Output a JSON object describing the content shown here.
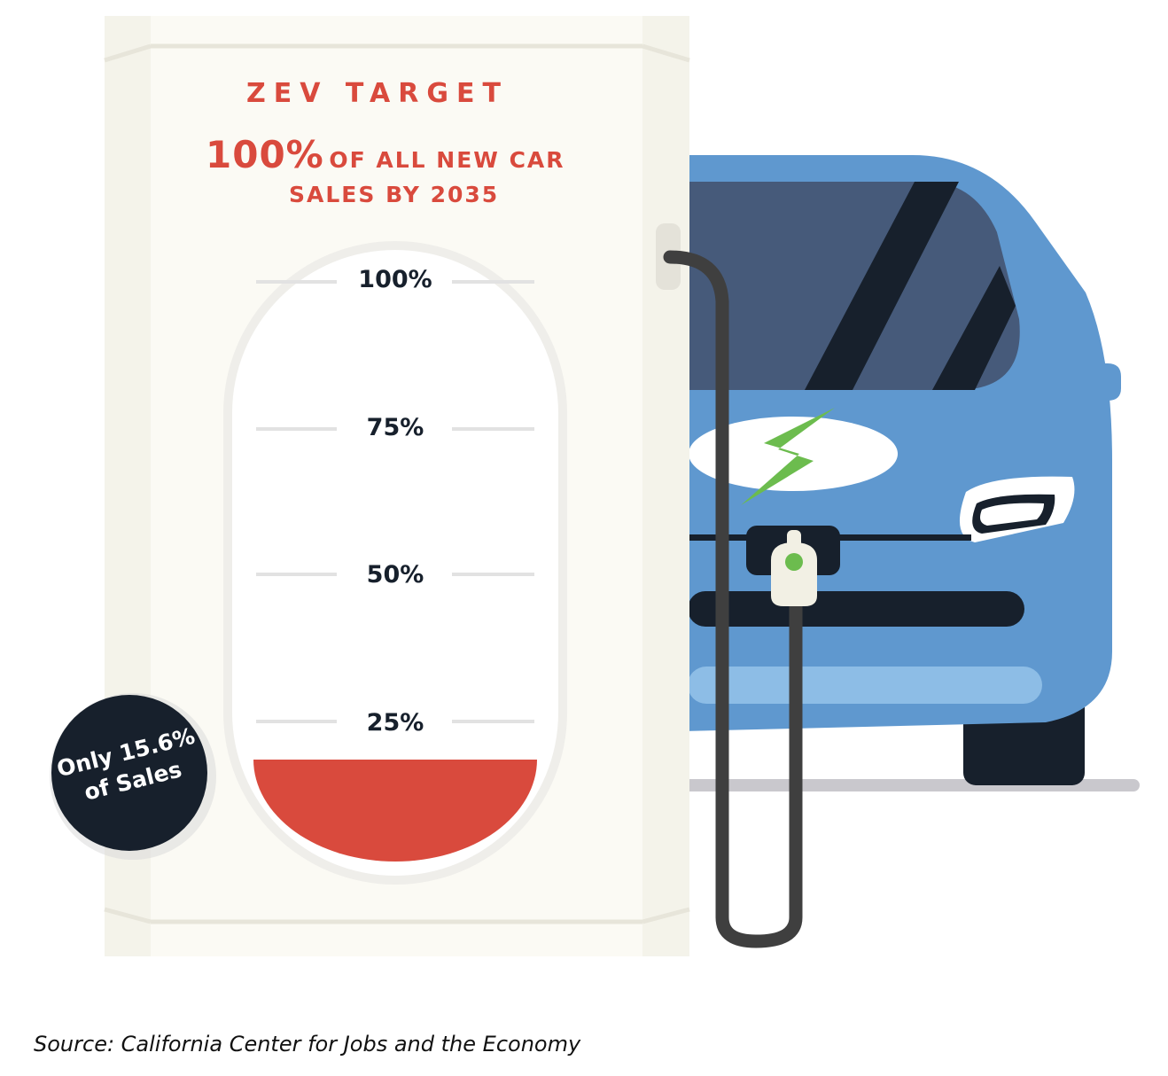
{
  "gauge": {
    "title": "ZEV TARGET",
    "headline_big": "100%",
    "headline_rest": "OF ALL NEW CAR",
    "headline_line2": "SALES BY 2035",
    "ticks": [
      "100%",
      "75%",
      "50%",
      "25%"
    ],
    "fill_fraction": 0.156,
    "fill_color": "#d94a3d"
  },
  "badge": {
    "text": "Only 15.6% of Sales"
  },
  "icons": {
    "car": "electric-car-icon",
    "bolt": "lightning-bolt-icon",
    "plug": "charging-plug-icon"
  },
  "colors": {
    "accent_red": "#d94a3d",
    "car_blue": "#5f98cf",
    "dark_navy": "#17202c",
    "station_cream": "#fbfaf4",
    "bolt_green": "#6cbc4e"
  },
  "source": "Source: California Center for Jobs and the Economy"
}
